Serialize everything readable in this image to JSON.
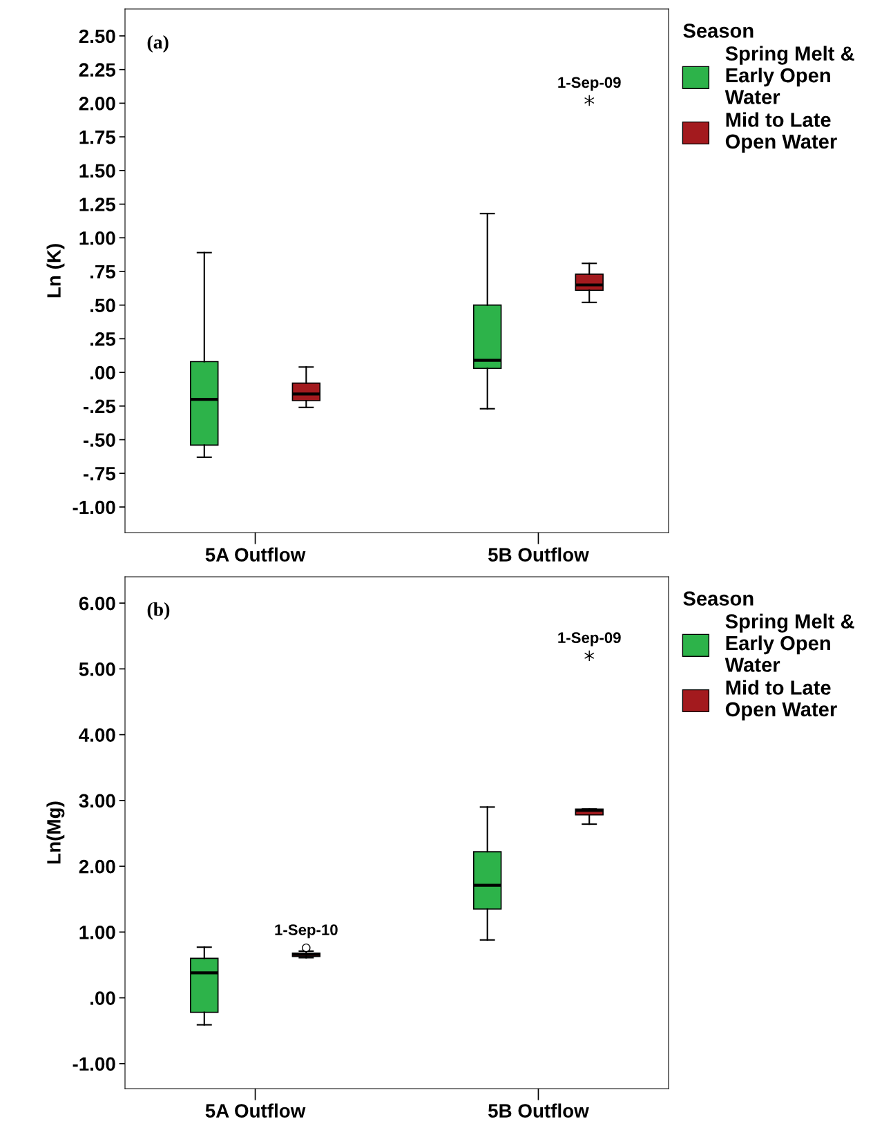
{
  "chart_data": [
    {
      "type": "box",
      "ylabel": "Ln (K)",
      "categories": [
        "5A Outflow",
        "5B Outflow"
      ],
      "legend_title": "Season",
      "legend": "right",
      "grid": false,
      "ylim": [
        -1.19,
        2.7
      ],
      "yticks": [
        {
          "value": -1.0,
          "label": "-1.00"
        },
        {
          "value": -0.75,
          "label": "-.75"
        },
        {
          "value": -0.5,
          "label": "-.50"
        },
        {
          "value": -0.25,
          "label": "-.25"
        },
        {
          "value": 0,
          "label": ".00"
        },
        {
          "value": 0.25,
          "label": ".25"
        },
        {
          "value": 0.5,
          "label": ".50"
        },
        {
          "value": 0.75,
          "label": ".75"
        },
        {
          "value": 1.0,
          "label": "1.00"
        },
        {
          "value": 1.25,
          "label": "1.25"
        },
        {
          "value": 1.5,
          "label": "1.50"
        },
        {
          "value": 1.75,
          "label": "1.75"
        },
        {
          "value": 2.0,
          "label": "2.00"
        },
        {
          "value": 2.25,
          "label": "2.25"
        },
        {
          "value": 2.5,
          "label": "2.50"
        }
      ],
      "series": [
        {
          "name": "Spring Melt &\nEarly Open\nWater",
          "color": "#2db34a",
          "boxes": [
            {
              "low": -0.63,
              "q1": -0.54,
              "median": -0.2,
              "q3": 0.08,
              "high": 0.89
            },
            {
              "low": -0.27,
              "q1": 0.03,
              "median": 0.09,
              "q3": 0.5,
              "high": 1.18
            }
          ]
        },
        {
          "name": "Mid to Late\nOpen Water",
          "color": "#a31a1e",
          "boxes": [
            {
              "low": -0.26,
              "q1": -0.21,
              "median": -0.16,
              "q3": -0.08,
              "high": 0.04
            },
            {
              "low": 0.52,
              "q1": 0.61,
              "median": 0.65,
              "q3": 0.73,
              "high": 0.81,
              "outliers": [
                2.02
              ]
            }
          ]
        }
      ],
      "annotations": [
        "(a)",
        "1-Sep-09"
      ]
    },
    {
      "type": "box",
      "ylabel": "Ln(Mg)",
      "categories": [
        "5A Outflow",
        "5B Outflow"
      ],
      "legend_title": "Season",
      "legend": "right",
      "grid": false,
      "ylim": [
        -1.38,
        6.4
      ],
      "yticks": [
        {
          "value": -1.0,
          "label": "-1.00"
        },
        {
          "value": 0,
          "label": ".00"
        },
        {
          "value": 1.0,
          "label": "1.00"
        },
        {
          "value": 2.0,
          "label": "2.00"
        },
        {
          "value": 3.0,
          "label": "3.00"
        },
        {
          "value": 4.0,
          "label": "4.00"
        },
        {
          "value": 5.0,
          "label": "5.00"
        },
        {
          "value": 6.0,
          "label": "6.00"
        }
      ],
      "series": [
        {
          "name": "Spring Melt &\nEarly Open\nWater",
          "color": "#2db34a",
          "boxes": [
            {
              "low": -0.41,
              "q1": -0.22,
              "median": 0.38,
              "q3": 0.6,
              "high": 0.77
            },
            {
              "low": 0.88,
              "q1": 1.35,
              "median": 1.71,
              "q3": 2.22,
              "high": 2.9
            }
          ]
        },
        {
          "name": "Mid to Late\nOpen Water",
          "color": "#a31a1e",
          "boxes": [
            {
              "low": 0.61,
              "q1": 0.63,
              "median": 0.66,
              "q3": 0.68,
              "high": 0.71,
              "outliers": [
                0.76
              ]
            },
            {
              "low": 2.64,
              "q1": 2.78,
              "median": 2.85,
              "q3": 2.87,
              "high": 2.87,
              "outliers": [
                5.2
              ]
            }
          ]
        }
      ],
      "annotations": [
        "(b)",
        "1-Sep-10",
        "1-Sep-09"
      ]
    }
  ]
}
